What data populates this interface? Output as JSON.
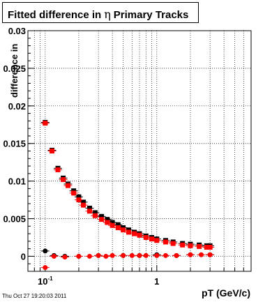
{
  "title": {
    "prefix": "Fitted difference in",
    "symbol": "η",
    "suffix": "Primary Tracks"
  },
  "timestamp": "Thu Oct 27 19:20:03 2011",
  "chart_data": {
    "type": "scatter",
    "xlabel": "pT (GeV/c)",
    "ylabel": "difference in",
    "xscale": "log",
    "xlim": [
      0.07,
      7
    ],
    "ylim": [
      -0.002,
      0.03
    ],
    "grid": true,
    "yticks": [
      {
        "v": 0,
        "label": "0"
      },
      {
        "v": 0.005,
        "label": "0.005"
      },
      {
        "v": 0.01,
        "label": "0.01"
      },
      {
        "v": 0.015,
        "label": "0.015"
      },
      {
        "v": 0.02,
        "label": "0.02"
      },
      {
        "v": 0.025,
        "label": "0.025"
      },
      {
        "v": 0.03,
        "label": "0.03"
      }
    ],
    "xtick_labels": [
      {
        "v": 0.1,
        "base": "10",
        "exp": "-1"
      },
      {
        "v": 1,
        "base": "1",
        "exp": ""
      }
    ],
    "series": [
      {
        "color": "#000000",
        "marker": "circle",
        "x": [
          0.1,
          0.12,
          0.15,
          0.2,
          0.3,
          0.5,
          0.7,
          1.0,
          1.5,
          2.0,
          3.0
        ],
        "y": [
          0.0007,
          0.0001,
          0.0,
          0.0,
          0.0001,
          0.0001,
          0.0001,
          0.0002,
          0.0001,
          0.0002,
          0.0002
        ]
      },
      {
        "color": "#000000",
        "marker": "square",
        "x": [
          0.1,
          0.115,
          0.13,
          0.145,
          0.16,
          0.18,
          0.2,
          0.22,
          0.25,
          0.28,
          0.32,
          0.36,
          0.4,
          0.45,
          0.5,
          0.56,
          0.63,
          0.7,
          0.8,
          0.9,
          1.0,
          1.2,
          1.4,
          1.7,
          2.0,
          2.4,
          2.8,
          3.0
        ],
        "y": [
          0.0178,
          0.0141,
          0.0117,
          0.0104,
          0.0096,
          0.0087,
          0.0079,
          0.0072,
          0.0064,
          0.0058,
          0.0053,
          0.0049,
          0.0045,
          0.0042,
          0.0038,
          0.0035,
          0.0032,
          0.003,
          0.0027,
          0.0025,
          0.0023,
          0.0021,
          0.0019,
          0.0017,
          0.0016,
          0.0015,
          0.0014,
          0.0014
        ]
      },
      {
        "color": "#ff0000",
        "marker": "circle",
        "x": [
          0.1,
          0.12,
          0.15,
          0.2,
          0.25,
          0.3,
          0.35,
          0.4,
          0.5,
          0.6,
          0.7,
          0.8,
          1.0,
          1.2,
          1.5,
          2.0,
          2.5,
          3.0
        ],
        "y": [
          -0.0015,
          0.0,
          -0.0001,
          0.0,
          0.0,
          0.0001,
          0.0,
          0.0001,
          0.0001,
          0.0001,
          0.0001,
          0.0001,
          0.0001,
          0.0001,
          0.0001,
          0.0002,
          0.0002,
          0.0002
        ]
      },
      {
        "color": "#ff0000",
        "marker": "square",
        "x": [
          0.1,
          0.115,
          0.13,
          0.145,
          0.16,
          0.18,
          0.2,
          0.22,
          0.25,
          0.28,
          0.32,
          0.36,
          0.4,
          0.45,
          0.5,
          0.56,
          0.63,
          0.7,
          0.8,
          0.9,
          1.0,
          1.2,
          1.4,
          1.7,
          2.0,
          2.4,
          2.8,
          3.0
        ],
        "y": [
          0.0177,
          0.014,
          0.0115,
          0.0102,
          0.0094,
          0.0084,
          0.0075,
          0.0068,
          0.006,
          0.0054,
          0.0049,
          0.0045,
          0.0041,
          0.0038,
          0.0035,
          0.0032,
          0.003,
          0.0028,
          0.0025,
          0.0023,
          0.0021,
          0.0019,
          0.0017,
          0.0015,
          0.0014,
          0.0013,
          0.0012,
          0.0012
        ]
      }
    ]
  }
}
